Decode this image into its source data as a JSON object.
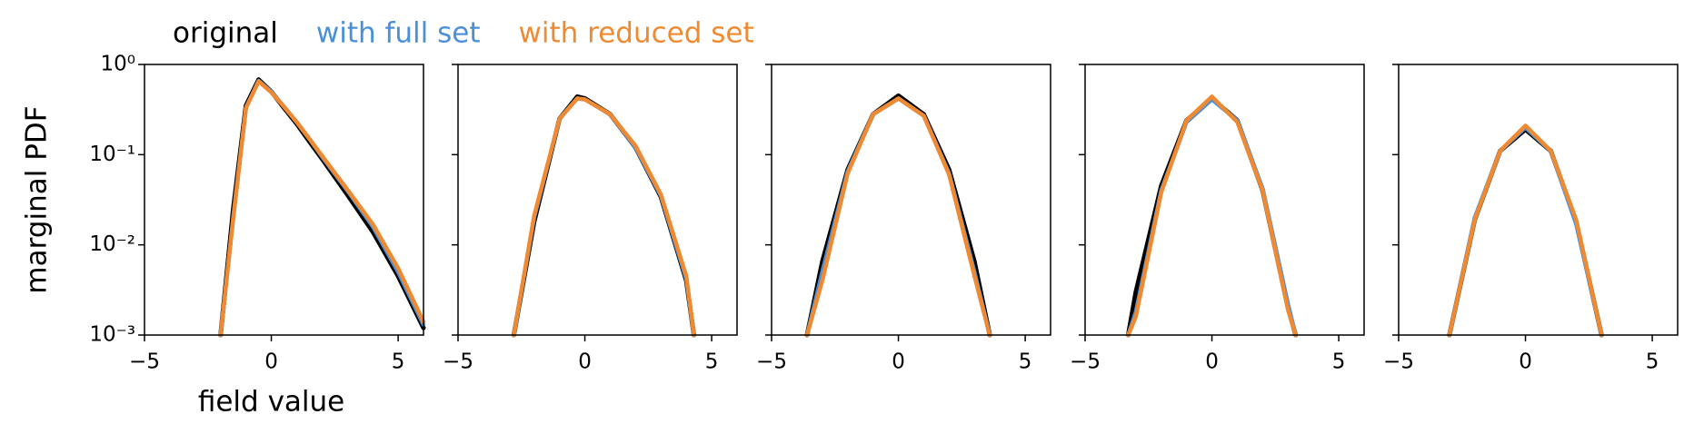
{
  "chart_data": [
    {
      "type": "line",
      "xlabel": "field value",
      "ylabel": "marginal PDF",
      "log_y": true,
      "xlim": [
        -5,
        6
      ],
      "xticks": [
        {
          "value": -5,
          "label": "−5"
        },
        0,
        5
      ],
      "ylim": [
        0.001,
        1
      ],
      "yticks": [
        {
          "value": 0.001,
          "label": "10⁻³"
        },
        {
          "value": 0.01,
          "label": "10⁻²"
        },
        {
          "value": 0.1,
          "label": "10⁻¹"
        },
        {
          "value": 1,
          "label": "10⁰"
        }
      ],
      "x": [
        -2,
        -1.5,
        -1,
        -0.5,
        0,
        0.5,
        1,
        1.5,
        2,
        3,
        4,
        5,
        6
      ],
      "series": [
        {
          "name": "original",
          "color": "#000000",
          "values": [
            0.001,
            0.025,
            0.35,
            0.68,
            0.5,
            0.33,
            0.22,
            0.14,
            0.09,
            0.036,
            0.014,
            0.0045,
            0.0012
          ]
        },
        {
          "name": "with full set",
          "color": "#4a90d9",
          "values": [
            0.001,
            0.02,
            0.33,
            0.66,
            0.5,
            0.34,
            0.23,
            0.15,
            0.095,
            0.04,
            0.016,
            0.005,
            0.0013
          ]
        },
        {
          "name": "with reduced set",
          "color": "#ef8a32",
          "values": [
            0.001,
            0.02,
            0.33,
            0.65,
            0.49,
            0.34,
            0.23,
            0.15,
            0.097,
            0.041,
            0.017,
            0.0055,
            0.0014
          ]
        }
      ]
    },
    {
      "type": "line",
      "xlim": [
        -5,
        6
      ],
      "xticks": [
        {
          "value": -5,
          "label": "−5"
        },
        0,
        5
      ],
      "ylim": [
        0.001,
        1
      ],
      "yticks": [
        0.001,
        0.01,
        0.1,
        1
      ],
      "x": [
        -2.8,
        -2,
        -1,
        -0.3,
        0,
        1,
        2,
        3,
        4,
        4.3
      ],
      "series": [
        {
          "name": "original",
          "color": "#000000",
          "values": [
            0.001,
            0.018,
            0.25,
            0.44,
            0.42,
            0.28,
            0.12,
            0.034,
            0.004,
            0.001
          ]
        },
        {
          "name": "with full set",
          "color": "#4a90d9",
          "values": [
            0.001,
            0.02,
            0.25,
            0.42,
            0.41,
            0.28,
            0.12,
            0.035,
            0.0042,
            0.001
          ]
        },
        {
          "name": "with reduced set",
          "color": "#ef8a32",
          "values": [
            0.001,
            0.021,
            0.25,
            0.42,
            0.41,
            0.28,
            0.125,
            0.036,
            0.0045,
            0.001
          ]
        }
      ]
    },
    {
      "type": "line",
      "xlim": [
        -5,
        6
      ],
      "xticks": [
        {
          "value": -5,
          "label": "−5"
        },
        0,
        5
      ],
      "ylim": [
        0.001,
        1
      ],
      "yticks": [
        0.001,
        0.01,
        0.1,
        1
      ],
      "x": [
        -3.6,
        -3,
        -2,
        -1,
        0,
        1,
        2,
        3,
        3.6
      ],
      "series": [
        {
          "name": "original",
          "color": "#000000",
          "values": [
            0.001,
            0.0065,
            0.068,
            0.28,
            0.45,
            0.28,
            0.068,
            0.0065,
            0.001
          ]
        },
        {
          "name": "with full set",
          "color": "#4a90d9",
          "values": [
            0.001,
            0.005,
            0.065,
            0.28,
            0.42,
            0.27,
            0.062,
            0.005,
            0.001
          ]
        },
        {
          "name": "with reduced set",
          "color": "#ef8a32",
          "values": [
            0.001,
            0.004,
            0.062,
            0.28,
            0.42,
            0.27,
            0.06,
            0.0045,
            0.001
          ]
        }
      ]
    },
    {
      "type": "line",
      "xlim": [
        -5,
        6
      ],
      "xticks": [
        {
          "value": -5,
          "label": "−5"
        },
        0,
        5
      ],
      "ylim": [
        0.001,
        1
      ],
      "yticks": [
        0.001,
        0.01,
        0.1,
        1
      ],
      "x": [
        -3.3,
        -3,
        -2,
        -1,
        0,
        1,
        2,
        3,
        3.3
      ],
      "series": [
        {
          "name": "original",
          "color": "#000000",
          "values": [
            0.001,
            0.003,
            0.045,
            0.24,
            0.42,
            0.24,
            0.04,
            0.002,
            0.001
          ]
        },
        {
          "name": "with full set",
          "color": "#4a90d9",
          "values": [
            0.001,
            0.0018,
            0.04,
            0.23,
            0.41,
            0.24,
            0.042,
            0.0022,
            0.001
          ]
        },
        {
          "name": "with reduced set",
          "color": "#ef8a32",
          "values": [
            0.001,
            0.0016,
            0.038,
            0.24,
            0.44,
            0.23,
            0.04,
            0.0019,
            0.001
          ]
        }
      ]
    },
    {
      "type": "line",
      "xlim": [
        -5,
        6
      ],
      "xticks": [
        {
          "value": -5,
          "label": "−5"
        },
        0,
        5
      ],
      "ylim": [
        0.001,
        1
      ],
      "yticks": [
        0.001,
        0.01,
        0.1,
        1
      ],
      "x": [
        -3,
        -2,
        -1,
        0,
        1,
        2,
        3
      ],
      "series": [
        {
          "name": "original",
          "color": "#000000",
          "values": [
            0.001,
            0.019,
            0.11,
            0.19,
            0.11,
            0.018,
            0.001
          ]
        },
        {
          "name": "with full set",
          "color": "#4a90d9",
          "values": [
            0.001,
            0.02,
            0.11,
            0.2,
            0.11,
            0.017,
            0.001
          ]
        },
        {
          "name": "with reduced set",
          "color": "#ef8a32",
          "values": [
            0.001,
            0.019,
            0.11,
            0.21,
            0.11,
            0.019,
            0.001
          ]
        }
      ]
    }
  ]
}
